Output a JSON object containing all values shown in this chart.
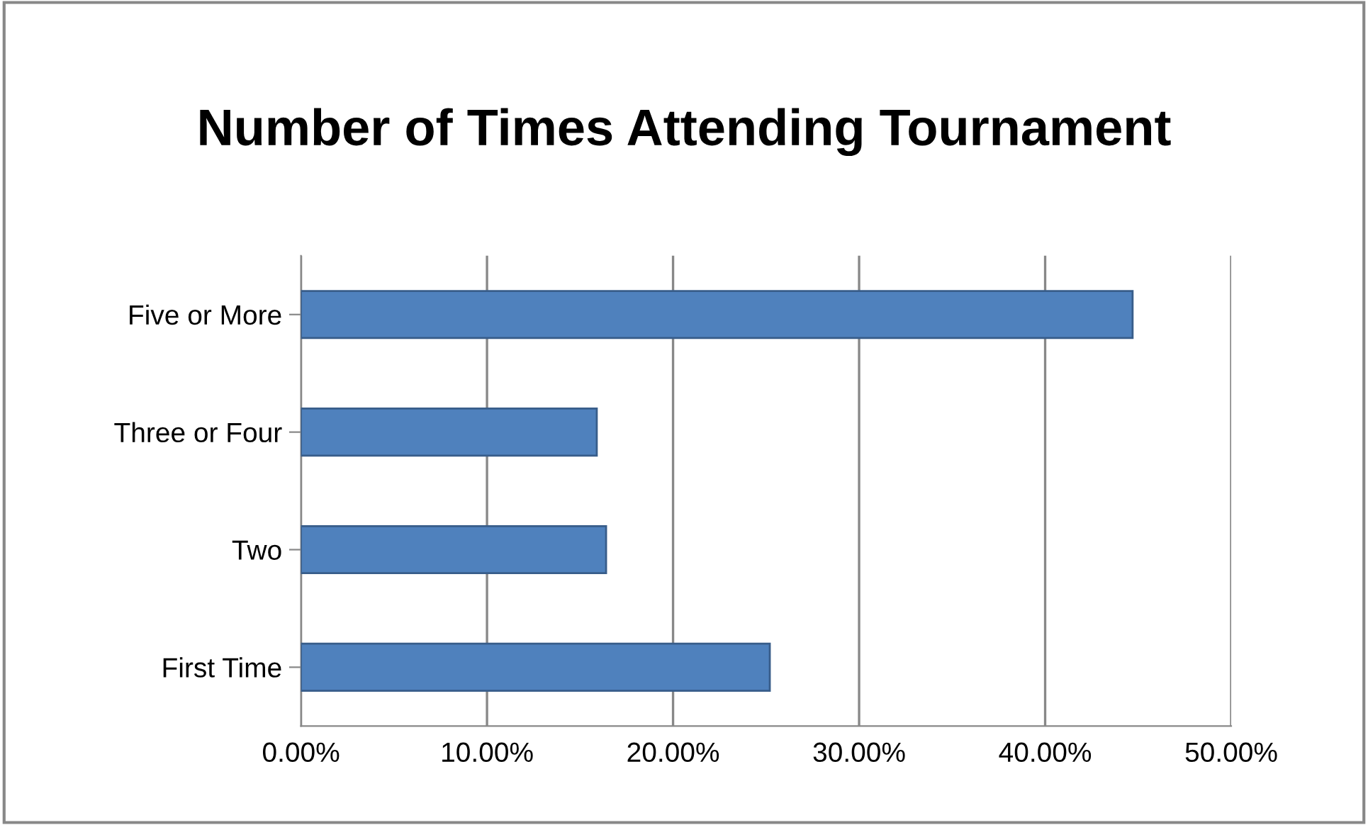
{
  "chart_data": {
    "type": "bar",
    "orientation": "horizontal",
    "title": "Number of Times Attending Tournament",
    "categories": [
      "Five or More",
      "Three or Four",
      "Two",
      "First Time"
    ],
    "values": [
      44.7,
      15.9,
      16.4,
      25.2
    ],
    "color": "#4f81bd",
    "xlim": [
      0,
      50
    ],
    "xticks": [
      {
        "value": 0,
        "label": "0.00%"
      },
      {
        "value": 10,
        "label": "10.00%"
      },
      {
        "value": 20,
        "label": "20.00%"
      },
      {
        "value": 30,
        "label": "30.00%"
      },
      {
        "value": 40,
        "label": "40.00%"
      },
      {
        "value": 50,
        "label": "50.00%"
      }
    ],
    "grid": "x",
    "legend": false
  }
}
